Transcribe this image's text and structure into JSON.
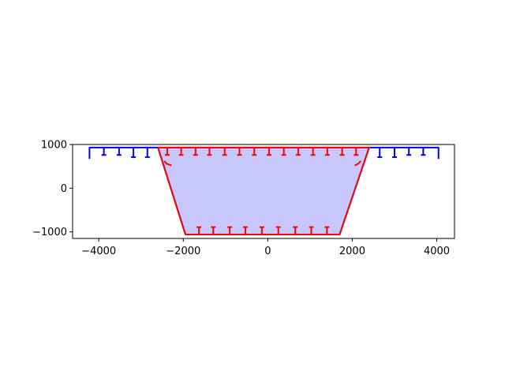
{
  "chart_data": {
    "type": "line",
    "title": "",
    "xlabel": "",
    "ylabel": "",
    "xlim": [
      -4620,
      4420
    ],
    "ylim": [
      -1150,
      1000
    ],
    "aspect": "equal",
    "grid": false,
    "legend": "none",
    "xticks": [
      -4000,
      -2000,
      0,
      2000,
      4000
    ],
    "xtick_labels": [
      "−4000",
      "−2000",
      "0",
      "2000",
      "4000"
    ],
    "yticks": [
      -1000,
      0,
      1000
    ],
    "ytick_labels": [
      "−1000",
      "0",
      "1000"
    ],
    "colors": {
      "blue": "#0000ff",
      "red": "#ff0000",
      "fill": "#c8c8ff",
      "frame": "#000000"
    },
    "series": [
      {
        "role": "fill",
        "points": [
          [
            -2600,
            930
          ],
          [
            2400,
            930
          ],
          [
            1700,
            -1060
          ],
          [
            -1950,
            -1060
          ]
        ]
      },
      {
        "role": "outline",
        "color": "#0000ff",
        "points": [
          [
            -4220,
            670
          ],
          [
            -4220,
            930
          ],
          [
            4040,
            930
          ],
          [
            4040,
            670
          ]
        ]
      },
      {
        "role": "outline",
        "color": "#0000ff",
        "points": [
          [
            -2600,
            930
          ],
          [
            -1950,
            -1060
          ],
          [
            1700,
            -1060
          ],
          [
            2400,
            930
          ]
        ]
      },
      {
        "role": "outline",
        "color": "#ff0000",
        "points": [
          [
            -2600,
            930
          ],
          [
            2400,
            930
          ],
          [
            1700,
            -1060
          ],
          [
            -1950,
            -1060
          ],
          [
            -2600,
            930
          ]
        ]
      }
    ],
    "bars": [
      {
        "color": "#0000ff",
        "top": 930,
        "x": [
          -3880,
          -3520,
          -3180,
          -2850,
          2650,
          3000,
          3340,
          3680
        ],
        "bottom": [
          760,
          760,
          710,
          710,
          710,
          710,
          760,
          760
        ]
      },
      {
        "color": "#ff0000",
        "top": 930,
        "bottom": 760,
        "x": [
          -2380,
          -2050,
          -1710,
          -1380,
          -1020,
          -670,
          -320,
          30,
          380,
          720,
          1070,
          1410,
          1760,
          2090
        ]
      },
      {
        "color": "#ff0000",
        "top": -1060,
        "bottom": -890,
        "x": [
          -1630,
          -1290,
          -900,
          -530,
          -140,
          250,
          650,
          1030,
          1400
        ]
      }
    ],
    "slope_marks": [
      {
        "color": "#ff0000",
        "points": [
          [
            -2450,
            620
          ],
          [
            -2390,
            560
          ],
          [
            -2280,
            520
          ]
        ]
      },
      {
        "color": "#ff0000",
        "points": [
          [
            2200,
            620
          ],
          [
            2140,
            560
          ],
          [
            2060,
            520
          ]
        ]
      }
    ]
  }
}
